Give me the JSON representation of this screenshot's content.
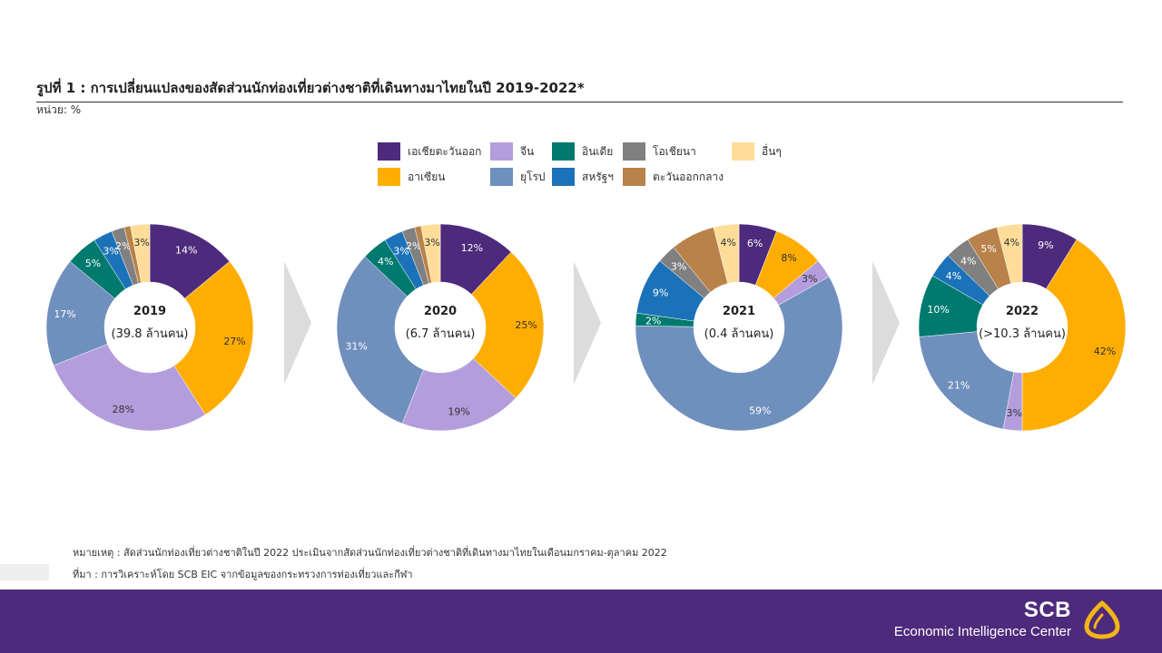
{
  "header": {
    "title": "รูปที่ 1 : การเปลี่ยนแปลงของสัดส่วนนักท่องเที่ยวต่างชาติที่เดินทางมาไทยในปี 2019-2022*",
    "unit": "หน่วย: %"
  },
  "legend": [
    {
      "label": "เอเชียตะวันออก",
      "color": "#4d2a7c"
    },
    {
      "label": "จีน",
      "color": "#b49ddc"
    },
    {
      "label": "อินเดีย",
      "color": "#007a6e"
    },
    {
      "label": "โอเชียนา",
      "color": "#808080"
    },
    {
      "label": "อื่นๆ",
      "color": "#ffdd99"
    },
    {
      "label": "อาเซียน",
      "color": "#ffad00"
    },
    {
      "label": "ยุโรป",
      "color": "#6f8fbd"
    },
    {
      "label": "สหรัฐฯ",
      "color": "#1c72b8"
    },
    {
      "label": "ตะวันออกกลาง",
      "color": "#b8824a"
    }
  ],
  "chart_data": [
    {
      "type": "pie",
      "center_label": "2019",
      "center_sub": "(39.8 ล้านคน)",
      "slices": [
        {
          "category": "เอเชียตะวันออก",
          "value": 14,
          "label": "14%"
        },
        {
          "category": "อาเซียน",
          "value": 27,
          "label": "27%"
        },
        {
          "category": "จีน",
          "value": 28,
          "label": "28%"
        },
        {
          "category": "ยุโรป",
          "value": 17,
          "label": "17%"
        },
        {
          "category": "อินเดีย",
          "value": 5,
          "label": "5%"
        },
        {
          "category": "สหรัฐฯ",
          "value": 3,
          "label": "3%"
        },
        {
          "category": "โอเชียนา",
          "value": 2,
          "label": "2%"
        },
        {
          "category": "ตะวันออกกลาง",
          "value": 1,
          "label": ""
        },
        {
          "category": "อื่นๆ",
          "value": 3,
          "label": "3%"
        }
      ]
    },
    {
      "type": "pie",
      "center_label": "2020",
      "center_sub": "(6.7 ล้านคน)",
      "slices": [
        {
          "category": "เอเชียตะวันออก",
          "value": 12,
          "label": "12%"
        },
        {
          "category": "อาเซียน",
          "value": 25,
          "label": "25%"
        },
        {
          "category": "จีน",
          "value": 19,
          "label": "19%"
        },
        {
          "category": "ยุโรป",
          "value": 31,
          "label": "31%"
        },
        {
          "category": "อินเดีย",
          "value": 4,
          "label": "4%"
        },
        {
          "category": "สหรัฐฯ",
          "value": 3,
          "label": "3%"
        },
        {
          "category": "โอเชียนา",
          "value": 2,
          "label": "2%"
        },
        {
          "category": "ตะวันออกกลาง",
          "value": 1,
          "label": ""
        },
        {
          "category": "อื่นๆ",
          "value": 3,
          "label": "3%"
        }
      ]
    },
    {
      "type": "pie",
      "center_label": "2021",
      "center_sub": "(0.4 ล้านคน)",
      "slices": [
        {
          "category": "เอเชียตะวันออก",
          "value": 6,
          "label": "6%"
        },
        {
          "category": "อาเซียน",
          "value": 8,
          "label": "8%"
        },
        {
          "category": "จีน",
          "value": 3,
          "label": "3%"
        },
        {
          "category": "ยุโรป",
          "value": 59,
          "label": "59%"
        },
        {
          "category": "อินเดีย",
          "value": 2,
          "label": "2%"
        },
        {
          "category": "สหรัฐฯ",
          "value": 9,
          "label": "9%"
        },
        {
          "category": "โอเชียนา",
          "value": 3,
          "label": "3%"
        },
        {
          "category": "ตะวันออกกลาง",
          "value": 7,
          "label": ""
        },
        {
          "category": "อื่นๆ",
          "value": 4,
          "label": "4%"
        }
      ]
    },
    {
      "type": "pie",
      "center_label": "2022",
      "center_sub": "(>10.3 ล้านคน)",
      "slices": [
        {
          "category": "เอเชียตะวันออก",
          "value": 9,
          "label": "9%"
        },
        {
          "category": "อาเซียน",
          "value": 42,
          "label": "42%"
        },
        {
          "category": "จีน",
          "value": 3,
          "label": "3%"
        },
        {
          "category": "ยุโรป",
          "value": 21,
          "label": "21%"
        },
        {
          "category": "อินเดีย",
          "value": 10,
          "label": "10%"
        },
        {
          "category": "สหรัฐฯ",
          "value": 4,
          "label": "4%"
        },
        {
          "category": "โอเชียนา",
          "value": 4,
          "label": "4%"
        },
        {
          "category": "ตะวันออกกลาง",
          "value": 5,
          "label": "5%"
        },
        {
          "category": "อื่นๆ",
          "value": 4,
          "label": "4%"
        }
      ]
    }
  ],
  "notes": {
    "remark": "หมายเหตุ : สัดส่วนนักท่องเที่ยวต่างชาติในปี 2022 ประเมินจากสัดส่วนนักท่องเที่ยวต่างชาติที่เดินทางมาไทยในเดือนมกราคม-ตุลาคม 2022",
    "source": "ที่มา : การวิเคราะห์โดย SCB EIC จากข้อมูลของกระทรวงการท่องเที่ยวและกีฬา"
  },
  "footer": {
    "brand": "SCB",
    "sub": "Economic Intelligence Center",
    "background": "#4d2a7c"
  }
}
